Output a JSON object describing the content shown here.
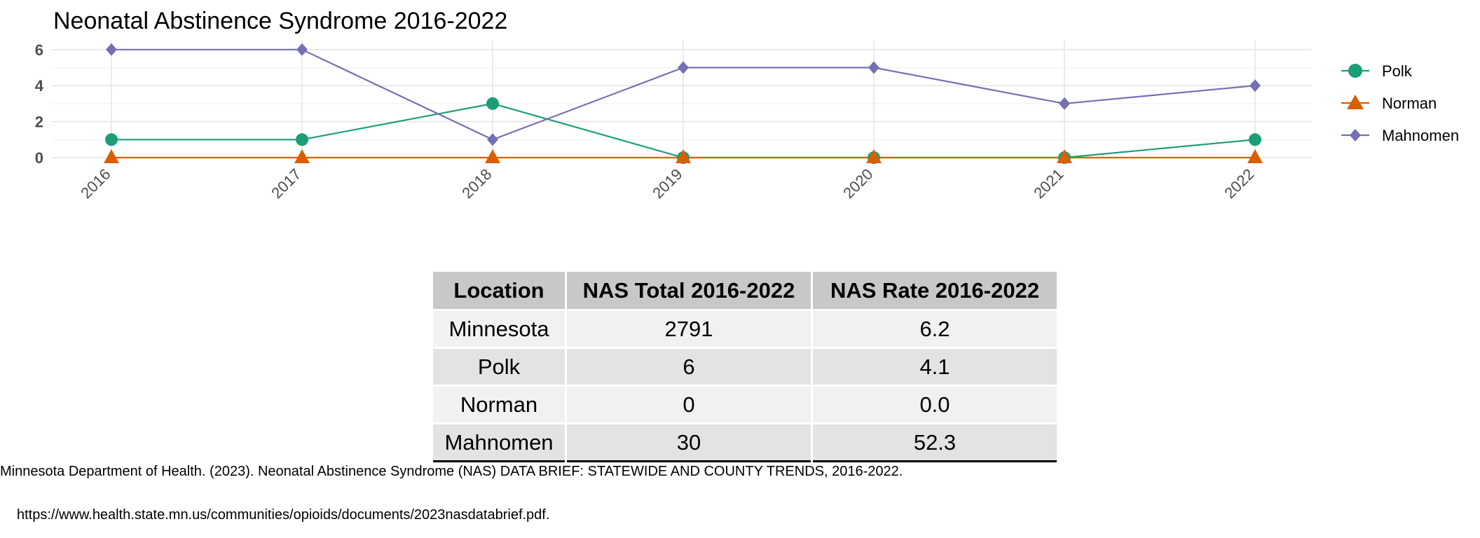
{
  "chart_data": {
    "type": "line",
    "title": "Neonatal Abstinence Syndrome 2016-2022",
    "xlabel": "",
    "ylabel": "",
    "categories": [
      "2016",
      "2017",
      "2018",
      "2019",
      "2020",
      "2021",
      "2022"
    ],
    "ylim": [
      0,
      6
    ],
    "yticks": [
      0,
      2,
      4,
      6
    ],
    "grid": true,
    "legend_position": "right",
    "series": [
      {
        "name": "Polk",
        "values": [
          1,
          1,
          3,
          0,
          0,
          0,
          1
        ],
        "color": "#1b9e77",
        "marker": "circle"
      },
      {
        "name": "Norman",
        "values": [
          0,
          0,
          0,
          0,
          0,
          0,
          0
        ],
        "color": "#d95f02",
        "marker": "triangle"
      },
      {
        "name": "Mahnomen",
        "values": [
          6,
          6,
          1,
          5,
          5,
          3,
          4
        ],
        "color": "#7570b3",
        "marker": "diamond"
      }
    ]
  },
  "table": {
    "headers": [
      "Location",
      "NAS Total 2016-2022",
      "NAS Rate 2016-2022"
    ],
    "rows": [
      [
        "Minnesota",
        "2791",
        "6.2"
      ],
      [
        "Polk",
        "6",
        "4.1"
      ],
      [
        "Norman",
        "0",
        "0.0"
      ],
      [
        "Mahnomen",
        "30",
        "52.3"
      ]
    ]
  },
  "citation": {
    "line1": "Minnesota Department of Health. (2023). Neonatal Abstinence Syndrome (NAS) DATA BRIEF: STATEWIDE AND COUNTY TRENDS, 2016-2022.",
    "line2": "https://www.health.state.mn.us/communities/opioids/documents/2023nasdatabrief.pdf."
  }
}
